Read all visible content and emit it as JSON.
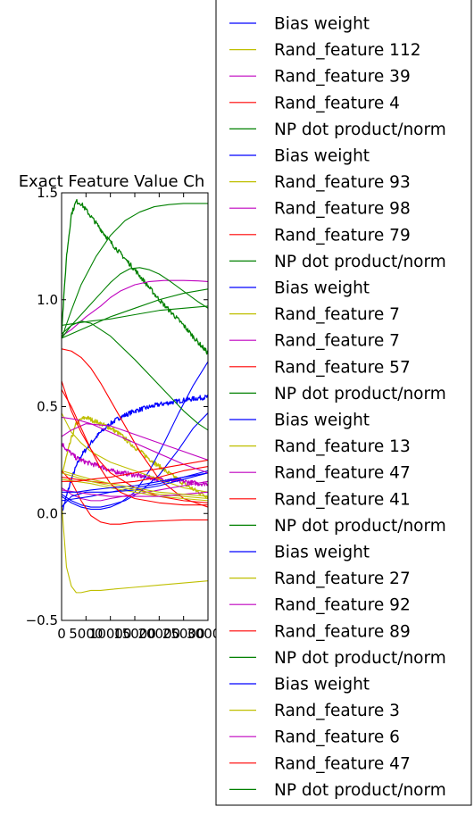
{
  "chart_data": {
    "type": "line",
    "title": "Exact Feature Value Ch",
    "xlabel": "",
    "ylabel": "",
    "xlim": [
      0,
      30000
    ],
    "ylim": [
      -0.5,
      1.5
    ],
    "x_ticks": [
      0,
      5000,
      10000,
      15000,
      20000,
      25000,
      30000
    ],
    "x_tick_labels": [
      "0",
      "5000",
      "10000",
      "15000",
      "20000",
      "25000",
      "30000"
    ],
    "y_ticks": [
      -0.5,
      0.0,
      0.5,
      1.0,
      1.5
    ],
    "y_tick_labels": [
      "−0.5",
      "0.0",
      "0.5",
      "1.0",
      "1.5"
    ],
    "grid": false,
    "legend_placement": "right, outside the axes",
    "colors": {
      "Bias weight": "#0000ff",
      "Rand_feature": "#bfbf00",
      "Rand_feature_magenta": "#bf00bf",
      "Rand_feature_red": "#ff0000",
      "NP dot product/norm": "#008000"
    },
    "series": [
      {
        "name": "Bias weight",
        "color": "#0000ff",
        "noisy": true,
        "x": [
          0,
          1000,
          2000,
          3000,
          4000,
          6000,
          8000,
          10000,
          12000,
          15000,
          20000,
          25000,
          28000,
          30000
        ],
        "y": [
          0.0,
          0.08,
          0.16,
          0.22,
          0.27,
          0.33,
          0.38,
          0.42,
          0.45,
          0.48,
          0.51,
          0.53,
          0.54,
          0.545
        ]
      },
      {
        "name": "Rand_feature 112",
        "color": "#bfbf00",
        "noisy": true,
        "x": [
          0,
          2000,
          3000,
          4000,
          5000,
          6000,
          8000,
          10000,
          12000,
          15000,
          20000,
          25000,
          28000,
          30000
        ],
        "y": [
          0.18,
          0.35,
          0.42,
          0.44,
          0.45,
          0.44,
          0.42,
          0.4,
          0.37,
          0.31,
          0.22,
          0.14,
          0.1,
          0.08
        ]
      },
      {
        "name": "Rand_feature 39",
        "color": "#bf00bf",
        "noisy": true,
        "x": [
          0,
          1000,
          2000,
          3000,
          5000,
          8000,
          10000,
          15000,
          20000,
          25000,
          28000,
          30000
        ],
        "y": [
          0.33,
          0.3,
          0.28,
          0.26,
          0.24,
          0.22,
          0.2,
          0.18,
          0.16,
          0.15,
          0.14,
          0.14
        ]
      },
      {
        "name": "Rand_feature 4",
        "color": "#ff0000",
        "noisy": false,
        "x": [
          0,
          2000,
          4000,
          6000,
          8000,
          10000,
          15000,
          20000,
          25000,
          30000
        ],
        "y": [
          0.62,
          0.48,
          0.38,
          0.3,
          0.24,
          0.19,
          0.12,
          0.08,
          0.06,
          0.05
        ]
      },
      {
        "name": "NP dot product/norm",
        "color": "#008000",
        "noisy": true,
        "x": [
          0,
          1000,
          2000,
          3000,
          4000,
          5000,
          7000,
          10000,
          15000,
          20000,
          25000,
          28000,
          30000
        ],
        "y": [
          0.85,
          1.2,
          1.4,
          1.46,
          1.45,
          1.42,
          1.36,
          1.27,
          1.14,
          1.0,
          0.88,
          0.8,
          0.75
        ]
      },
      {
        "name": "Bias weight",
        "color": "#0000ff",
        "noisy": false,
        "x": [
          0,
          2000,
          4000,
          6000,
          8000,
          10000,
          12000,
          15000,
          18000,
          21000,
          24000,
          27000,
          30000
        ],
        "y": [
          0.08,
          0.05,
          0.03,
          0.02,
          0.02,
          0.03,
          0.05,
          0.1,
          0.2,
          0.33,
          0.47,
          0.6,
          0.71
        ]
      },
      {
        "name": "Rand_feature 93",
        "color": "#bfbf00",
        "noisy": false,
        "x": [
          0,
          1000,
          2000,
          3000,
          4000,
          6000,
          8000,
          10000,
          15000,
          20000,
          25000,
          30000
        ],
        "y": [
          0.05,
          -0.25,
          -0.34,
          -0.37,
          -0.37,
          -0.36,
          -0.36,
          -0.355,
          -0.345,
          -0.335,
          -0.325,
          -0.315
        ]
      },
      {
        "name": "Rand_feature 98",
        "color": "#bf00bf",
        "noisy": false,
        "x": [
          0,
          2000,
          5000,
          8000,
          10000,
          12000,
          15000,
          18000,
          21000,
          25000,
          28000,
          30000
        ],
        "y": [
          0.83,
          0.86,
          0.92,
          0.97,
          1.01,
          1.04,
          1.07,
          1.085,
          1.09,
          1.09,
          1.088,
          1.085
        ]
      },
      {
        "name": "Rand_feature 79",
        "color": "#ff0000",
        "noisy": false,
        "x": [
          0,
          2000,
          4000,
          6000,
          8000,
          10000,
          13000,
          16000,
          20000,
          25000,
          30000
        ],
        "y": [
          0.77,
          0.76,
          0.73,
          0.68,
          0.61,
          0.53,
          0.41,
          0.29,
          0.16,
          0.07,
          0.03
        ]
      },
      {
        "name": "NP dot product/norm",
        "color": "#008000",
        "noisy": false,
        "x": [
          0,
          2000,
          4000,
          7000,
          10000,
          13000,
          16000,
          19000,
          22000,
          25000,
          28000,
          30000
        ],
        "y": [
          0.82,
          0.95,
          1.07,
          1.2,
          1.3,
          1.37,
          1.41,
          1.435,
          1.445,
          1.45,
          1.45,
          1.45
        ]
      },
      {
        "name": "Bias weight",
        "color": "#0000ff",
        "noisy": false,
        "x": [
          0,
          2000,
          4000,
          6000,
          8000,
          10000,
          13000,
          16000,
          20000,
          24000,
          27000,
          30000
        ],
        "y": [
          0.09,
          0.06,
          0.04,
          0.03,
          0.03,
          0.04,
          0.06,
          0.1,
          0.18,
          0.3,
          0.4,
          0.47
        ]
      },
      {
        "name": "Rand_feature 7",
        "color": "#bfbf00",
        "noisy": false,
        "x": [
          0,
          2000,
          4000,
          6000,
          10000,
          15000,
          20000,
          25000,
          30000
        ],
        "y": [
          0.47,
          0.38,
          0.33,
          0.29,
          0.24,
          0.2,
          0.16,
          0.12,
          0.1
        ]
      },
      {
        "name": "Rand_feature 7",
        "color": "#bf00bf",
        "noisy": false,
        "x": [
          0,
          2000,
          4000,
          6000,
          8000,
          10000,
          15000,
          20000,
          25000,
          30000
        ],
        "y": [
          0.12,
          0.09,
          0.07,
          0.06,
          0.06,
          0.07,
          0.09,
          0.11,
          0.13,
          0.15
        ]
      },
      {
        "name": "Rand_feature 57",
        "color": "#ff0000",
        "noisy": false,
        "x": [
          0,
          2000,
          4000,
          6000,
          8000,
          10000,
          12000,
          15000,
          20000,
          25000,
          30000
        ],
        "y": [
          0.2,
          0.15,
          0.06,
          -0.01,
          -0.04,
          -0.05,
          -0.05,
          -0.04,
          -0.035,
          -0.03,
          -0.03
        ]
      },
      {
        "name": "NP dot product/norm",
        "color": "#008000",
        "noisy": false,
        "x": [
          0,
          2000,
          4000,
          6000,
          8000,
          10000,
          12000,
          14000,
          16000,
          18000,
          20000,
          22000,
          25000,
          28000,
          30000
        ],
        "y": [
          0.82,
          0.88,
          0.93,
          0.98,
          1.03,
          1.08,
          1.12,
          1.145,
          1.15,
          1.14,
          1.12,
          1.09,
          1.04,
          0.99,
          0.96
        ]
      },
      {
        "name": "Bias weight",
        "color": "#0000ff",
        "noisy": false,
        "x": [
          0,
          3000,
          6000,
          10000,
          15000,
          20000,
          25000,
          30000
        ],
        "y": [
          0.06,
          0.07,
          0.08,
          0.1,
          0.12,
          0.14,
          0.17,
          0.2
        ]
      },
      {
        "name": "Rand_feature 13",
        "color": "#bfbf00",
        "noisy": false,
        "x": [
          0,
          3000,
          6000,
          10000,
          15000,
          20000,
          25000,
          30000
        ],
        "y": [
          0.16,
          0.15,
          0.14,
          0.12,
          0.1,
          0.08,
          0.07,
          0.06
        ]
      },
      {
        "name": "Rand_feature 47",
        "color": "#bf00bf",
        "noisy": false,
        "x": [
          0,
          2000,
          5000,
          10000,
          15000,
          20000,
          25000,
          30000
        ],
        "y": [
          0.36,
          0.39,
          0.42,
          0.41,
          0.37,
          0.33,
          0.29,
          0.25
        ]
      },
      {
        "name": "Rand_feature 41",
        "color": "#ff0000",
        "noisy": false,
        "x": [
          0,
          3000,
          6000,
          10000,
          15000,
          20000,
          25000,
          30000
        ],
        "y": [
          0.17,
          0.16,
          0.15,
          0.14,
          0.15,
          0.17,
          0.2,
          0.22
        ]
      },
      {
        "name": "NP dot product/norm",
        "color": "#008000",
        "noisy": false,
        "x": [
          0,
          2000,
          4000,
          6000,
          10000,
          15000,
          20000,
          25000,
          28000,
          30000
        ],
        "y": [
          0.84,
          0.88,
          0.9,
          0.89,
          0.83,
          0.72,
          0.6,
          0.48,
          0.42,
          0.39
        ]
      },
      {
        "name": "Bias weight",
        "color": "#0000ff",
        "noisy": false,
        "x": [
          0,
          2000,
          5000,
          8000,
          10000,
          15000,
          20000,
          25000,
          30000
        ],
        "y": [
          0.03,
          0.08,
          0.1,
          0.1,
          0.1,
          0.11,
          0.13,
          0.16,
          0.19
        ]
      },
      {
        "name": "Rand_feature 27",
        "color": "#bfbf00",
        "noisy": false,
        "x": [
          0,
          3000,
          6000,
          10000,
          15000,
          20000,
          25000,
          30000
        ],
        "y": [
          0.19,
          0.17,
          0.15,
          0.13,
          0.11,
          0.09,
          0.08,
          0.07
        ]
      },
      {
        "name": "Rand_feature 92",
        "color": "#bf00bf",
        "noisy": false,
        "x": [
          0,
          3000,
          6000,
          10000,
          15000,
          20000,
          25000,
          30000
        ],
        "y": [
          0.11,
          0.1,
          0.09,
          0.08,
          0.08,
          0.08,
          0.09,
          0.1
        ]
      },
      {
        "name": "Rand_feature 89",
        "color": "#ff0000",
        "noisy": false,
        "x": [
          0,
          2000,
          4000,
          6000,
          8000,
          10000,
          12000,
          15000,
          20000,
          25000,
          30000
        ],
        "y": [
          0.58,
          0.5,
          0.4,
          0.3,
          0.21,
          0.14,
          0.1,
          0.07,
          0.05,
          0.04,
          0.04
        ]
      },
      {
        "name": "NP dot product/norm",
        "color": "#008000",
        "noisy": false,
        "x": [
          0,
          3000,
          6000,
          10000,
          15000,
          20000,
          25000,
          30000
        ],
        "y": [
          0.88,
          0.89,
          0.9,
          0.91,
          0.93,
          0.95,
          0.96,
          0.97
        ]
      },
      {
        "name": "Bias weight",
        "color": "#0000ff",
        "noisy": false,
        "x": [
          0,
          3000,
          6000,
          10000,
          15000,
          20000,
          25000,
          30000
        ],
        "y": [
          0.1,
          0.1,
          0.11,
          0.12,
          0.13,
          0.15,
          0.17,
          0.19
        ]
      },
      {
        "name": "Rand_feature 3",
        "color": "#bfbf00",
        "noisy": false,
        "x": [
          0,
          3000,
          6000,
          10000,
          15000,
          20000,
          25000,
          30000
        ],
        "y": [
          0.2,
          0.18,
          0.16,
          0.14,
          0.12,
          0.1,
          0.09,
          0.08
        ]
      },
      {
        "name": "Rand_feature 6",
        "color": "#bf00bf",
        "noisy": false,
        "x": [
          0,
          3000,
          6000,
          10000,
          15000,
          20000,
          25000,
          30000
        ],
        "y": [
          0.45,
          0.44,
          0.42,
          0.38,
          0.33,
          0.28,
          0.23,
          0.19
        ]
      },
      {
        "name": "Rand_feature 47",
        "color": "#ff0000",
        "noisy": false,
        "x": [
          0,
          3000,
          6000,
          10000,
          15000,
          20000,
          25000,
          30000
        ],
        "y": [
          0.15,
          0.15,
          0.16,
          0.17,
          0.19,
          0.21,
          0.23,
          0.25
        ]
      },
      {
        "name": "NP dot product/norm",
        "color": "#008000",
        "noisy": false,
        "x": [
          0,
          3000,
          6000,
          10000,
          15000,
          20000,
          25000,
          30000
        ],
        "y": [
          0.82,
          0.85,
          0.88,
          0.92,
          0.96,
          1.0,
          1.03,
          1.05
        ]
      }
    ]
  }
}
